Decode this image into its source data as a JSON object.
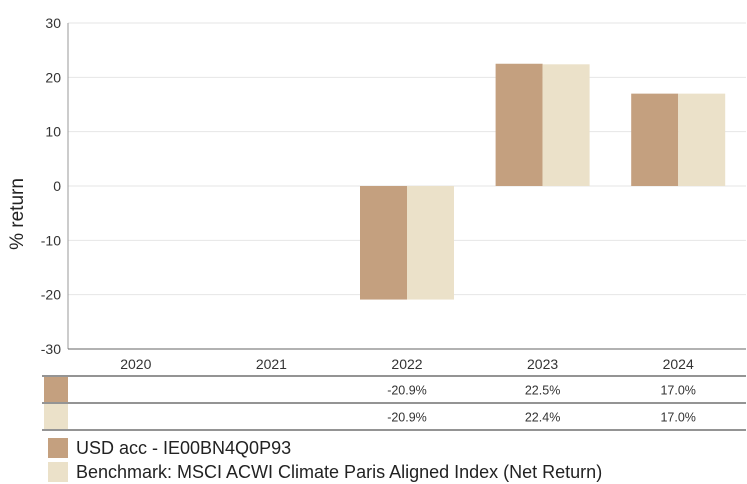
{
  "chart_data": {
    "type": "bar",
    "ylabel": "% return",
    "ylim": [
      -30,
      30
    ],
    "yticks": [
      30,
      20,
      10,
      0,
      -10,
      -20,
      -30
    ],
    "categories": [
      "2020",
      "2021",
      "2022",
      "2023",
      "2024"
    ],
    "grid": true,
    "series": [
      {
        "name": "USD acc - IE00BN4Q0P93",
        "color": "#c4a07f",
        "values": [
          null,
          null,
          -20.9,
          22.5,
          17.0
        ],
        "labels": [
          "",
          "",
          "-20.9%",
          "22.5%",
          "17.0%"
        ]
      },
      {
        "name": "Benchmark: MSCI ACWI Climate Paris Aligned Index (Net Return)",
        "color": "#ebe1c9",
        "values": [
          null,
          null,
          -20.9,
          22.4,
          17.0
        ],
        "labels": [
          "",
          "",
          "-20.9%",
          "22.4%",
          "17.0%"
        ]
      }
    ],
    "legend_position": "bottom-left"
  }
}
